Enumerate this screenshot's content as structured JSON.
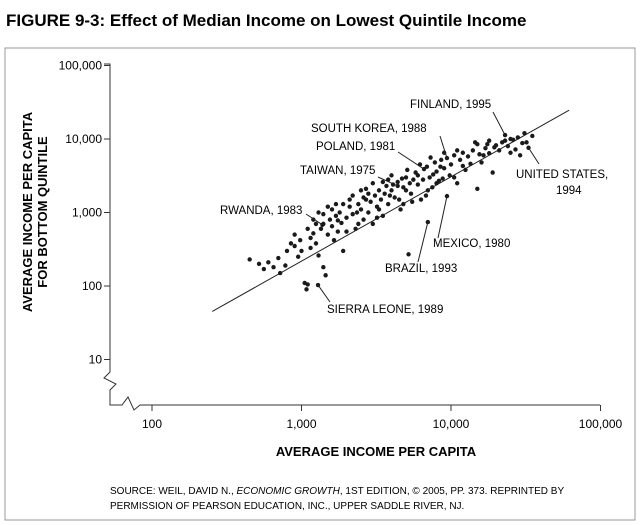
{
  "chart_data": {
    "type": "scatter",
    "title": "FIGURE 9-3: Effect of Median Income on Lowest Quintile Income",
    "xlabel": "AVERAGE INCOME PER CAPITA",
    "ylabel": [
      "AVERAGE INCOME PER CAPITA",
      "FOR BOTTOM QUINTILE"
    ],
    "x_scale": "log",
    "y_scale": "log",
    "xlim": [
      50,
      100000
    ],
    "ylim": [
      3,
      100000
    ],
    "x_ticks": [
      {
        "value": 100,
        "label": "100"
      },
      {
        "value": 1000,
        "label": "1,000"
      },
      {
        "value": 10000,
        "label": "10,000"
      },
      {
        "value": 100000,
        "label": "100,000"
      }
    ],
    "y_ticks": [
      {
        "value": 10,
        "label": "10"
      },
      {
        "value": 100,
        "label": "100"
      },
      {
        "value": 1000,
        "label": "1,000"
      },
      {
        "value": 10000,
        "label": "10,000"
      },
      {
        "value": 100000,
        "label": "100,000"
      }
    ],
    "grid": false,
    "fit_line": [
      [
        253,
        45
      ],
      [
        61700,
        24700
      ]
    ],
    "points": [
      [
        450,
        230
      ],
      [
        520,
        200
      ],
      [
        560,
        170
      ],
      [
        600,
        210
      ],
      [
        650,
        180
      ],
      [
        700,
        240
      ],
      [
        720,
        150
      ],
      [
        780,
        190
      ],
      [
        800,
        300
      ],
      [
        850,
        380
      ],
      [
        900,
        350
      ],
      [
        950,
        250
      ],
      [
        980,
        420
      ],
      [
        1000,
        300
      ],
      [
        1050,
        110
      ],
      [
        1080,
        90
      ],
      [
        1100,
        105
      ],
      [
        1150,
        450
      ],
      [
        1200,
        520
      ],
      [
        1250,
        380
      ],
      [
        1300,
        260
      ],
      [
        1350,
        600
      ],
      [
        1400,
        700
      ],
      [
        1400,
        180
      ],
      [
        1450,
        140
      ],
      [
        1500,
        500
      ],
      [
        1550,
        800
      ],
      [
        1600,
        650
      ],
      [
        1650,
        420
      ],
      [
        1700,
        900
      ],
      [
        1750,
        550
      ],
      [
        1800,
        1000
      ],
      [
        1850,
        720
      ],
      [
        1900,
        300
      ],
      [
        2000,
        850
      ],
      [
        2100,
        1200
      ],
      [
        2200,
        950
      ],
      [
        2300,
        600
      ],
      [
        2400,
        1300
      ],
      [
        2500,
        1100
      ],
      [
        2600,
        800
      ],
      [
        2700,
        1500
      ],
      [
        2800,
        1000
      ],
      [
        2900,
        1400
      ],
      [
        3000,
        700
      ],
      [
        3100,
        1700
      ],
      [
        3200,
        1200
      ],
      [
        3300,
        2000
      ],
      [
        3400,
        1500
      ],
      [
        3500,
        900
      ],
      [
        3600,
        1800
      ],
      [
        3700,
        2300
      ],
      [
        3800,
        1300
      ],
      [
        4000,
        2000
      ],
      [
        4200,
        1600
      ],
      [
        4400,
        2600
      ],
      [
        4600,
        1100
      ],
      [
        4800,
        2200
      ],
      [
        5000,
        3000
      ],
      [
        5200,
        270
      ],
      [
        5400,
        1800
      ],
      [
        5600,
        2800
      ],
      [
        5800,
        3500
      ],
      [
        6000,
        2400
      ],
      [
        6300,
        1500
      ],
      [
        6900,
        4200
      ],
      [
        7200,
        3000
      ],
      [
        7500,
        2200
      ],
      [
        7800,
        4800
      ],
      [
        8000,
        3600
      ],
      [
        8300,
        2700
      ],
      [
        8600,
        5200
      ],
      [
        9000,
        4000
      ],
      [
        9800,
        3200
      ],
      [
        10000,
        4500
      ],
      [
        10500,
        6000
      ],
      [
        11000,
        2500
      ],
      [
        11500,
        5200
      ],
      [
        12000,
        6500
      ],
      [
        12500,
        3800
      ],
      [
        13000,
        5800
      ],
      [
        14000,
        7000
      ],
      [
        15000,
        2100
      ],
      [
        15500,
        6200
      ],
      [
        16000,
        4800
      ],
      [
        17000,
        7500
      ],
      [
        18000,
        6400
      ],
      [
        19000,
        3500
      ],
      [
        20000,
        8200
      ],
      [
        21000,
        7000
      ],
      [
        22000,
        9000
      ],
      [
        24000,
        8000
      ],
      [
        25000,
        6500
      ],
      [
        26000,
        9800
      ],
      [
        28000,
        10500
      ],
      [
        30000,
        8800
      ],
      [
        31000,
        12000
      ],
      [
        35000,
        11000
      ],
      [
        29000,
        6000
      ],
      [
        27000,
        7200
      ],
      [
        1200,
        800
      ],
      [
        1300,
        1000
      ],
      [
        1600,
        1100
      ],
      [
        1900,
        1300
      ],
      [
        2200,
        1700
      ],
      [
        2500,
        2000
      ],
      [
        2800,
        1800
      ],
      [
        3000,
        2500
      ],
      [
        3500,
        2600
      ],
      [
        4000,
        3200
      ],
      [
        4500,
        1500
      ],
      [
        5000,
        2000
      ],
      [
        5500,
        1400
      ],
      [
        6000,
        3200
      ],
      [
        6500,
        2800
      ],
      [
        7000,
        2000
      ],
      [
        8000,
        2500
      ],
      [
        9000,
        6500
      ],
      [
        12000,
        4300
      ],
      [
        15000,
        8500
      ],
      [
        18000,
        9500
      ],
      [
        900,
        500
      ],
      [
        1100,
        600
      ],
      [
        1400,
        950
      ],
      [
        1700,
        1300
      ],
      [
        2000,
        550
      ],
      [
        2400,
        700
      ],
      [
        2600,
        1600
      ],
      [
        3200,
        850
      ],
      [
        3800,
        2800
      ],
      [
        4800,
        1300
      ],
      [
        5300,
        2500
      ],
      [
        6800,
        1700
      ],
      [
        7600,
        3300
      ],
      [
        8800,
        2900
      ],
      [
        10500,
        3000
      ],
      [
        13500,
        4600
      ],
      [
        16500,
        6000
      ],
      [
        19500,
        7700
      ],
      [
        25000,
        10000
      ],
      [
        1500,
        1200
      ],
      [
        2100,
        1500
      ],
      [
        2700,
        2100
      ],
      [
        3300,
        1100
      ],
      [
        4100,
        2400
      ],
      [
        5100,
        3800
      ],
      [
        6200,
        4500
      ],
      [
        7300,
        5600
      ],
      [
        8500,
        4200
      ],
      [
        11000,
        7000
      ],
      [
        14500,
        9000
      ],
      [
        17500,
        8500
      ],
      [
        23000,
        9500
      ],
      [
        32000,
        9000
      ],
      [
        1150,
        330
      ],
      [
        1250,
        700
      ],
      [
        1750,
        780
      ],
      [
        2350,
        1000
      ],
      [
        3900,
        1700
      ],
      [
        4700,
        2900
      ]
    ],
    "annotations": [
      {
        "label": "FINLAND, 1995",
        "x": 23000,
        "y": 11300
      },
      {
        "label": "SOUTH KOREA, 1988",
        "x": 9400,
        "y": 5500
      },
      {
        "label": "POLAND, 1981",
        "x": 6600,
        "y": 3900
      },
      {
        "label": "TAIWAN, 1975",
        "x": 4400,
        "y": 2300
      },
      {
        "label": "RWANDA, 1983",
        "x": 1380,
        "y": 680
      },
      {
        "label": "UNITED STATES,",
        "label2": "1994",
        "x": 33000,
        "y": 7600
      },
      {
        "label": "MEXICO, 1980",
        "x": 9400,
        "y": 1670
      },
      {
        "label": "BRAZIL, 1993",
        "x": 7000,
        "y": 740
      },
      {
        "label": "SIERRA LEONE, 1989",
        "x": 1290,
        "y": 103
      }
    ],
    "source": [
      "SOURCE: WEIL, DAVID N., ",
      "ECONOMIC GROWTH",
      ", 1ST EDITION, © 2005, PP. 373. REPRINTED BY",
      "PERMISSION OF PEARSON EDUCATION, INC., UPPER SADDLE RIVER, NJ."
    ]
  }
}
